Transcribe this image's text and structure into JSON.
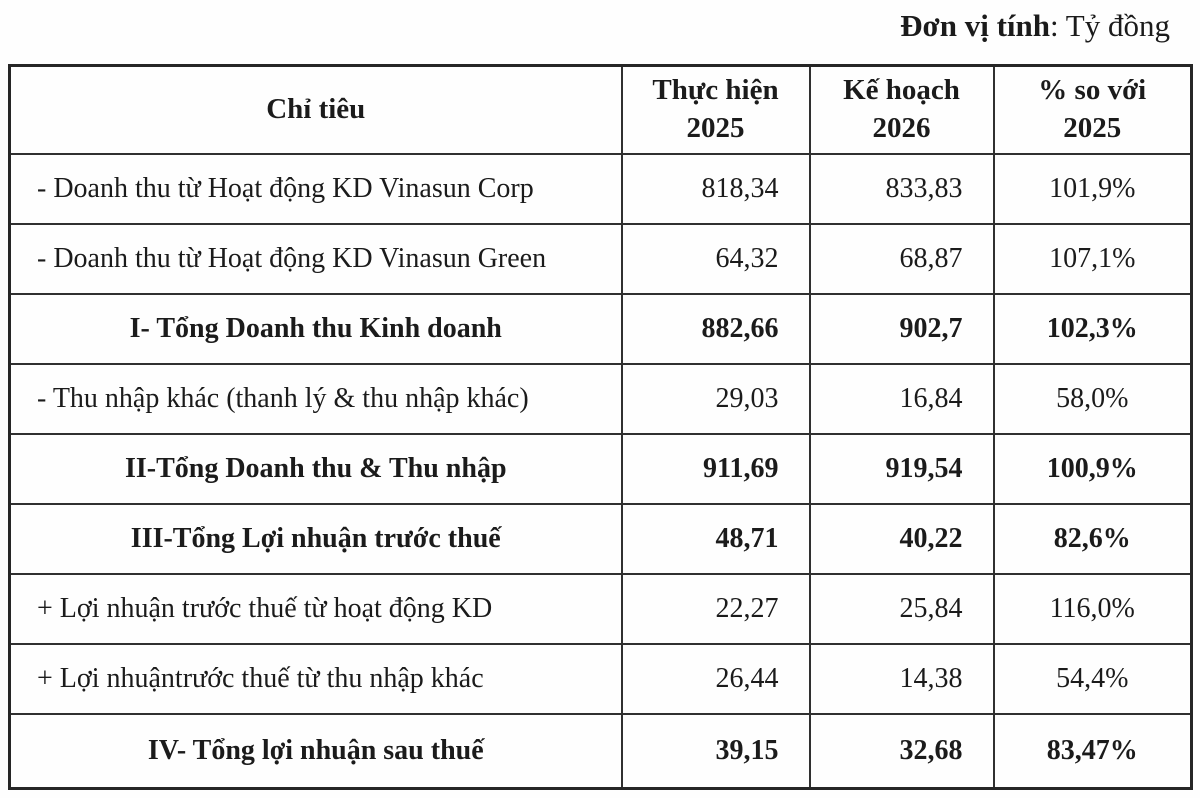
{
  "unit_label": {
    "bold": "Đơn vị tính",
    "rest": ": Tỷ đồng"
  },
  "table": {
    "columns": [
      {
        "label": "Chỉ tiêu",
        "sub": ""
      },
      {
        "label": "Thực hiện",
        "sub": "2025"
      },
      {
        "label": "Kế hoạch",
        "sub": "2026"
      },
      {
        "label": "% so với",
        "sub": "2025"
      }
    ],
    "rows": [
      {
        "label": "- Doanh thu từ Hoạt động KD Vinasun Corp",
        "v2025": "818,34",
        "v2026": "833,83",
        "pct": "101,9%",
        "bold": false
      },
      {
        "label": "- Doanh thu từ Hoạt động KD Vinasun Green",
        "v2025": "64,32",
        "v2026": "68,87",
        "pct": "107,1%",
        "bold": false
      },
      {
        "label": "I-  Tổng Doanh thu Kinh doanh",
        "v2025": "882,66",
        "v2026": "902,7",
        "pct": "102,3%",
        "bold": true
      },
      {
        "label": "- Thu nhập khác (thanh lý & thu nhập khác)",
        "v2025": "29,03",
        "v2026": "16,84",
        "pct": "58,0%",
        "bold": false
      },
      {
        "label": "II-Tổng Doanh thu & Thu nhập",
        "v2025": "911,69",
        "v2026": "919,54",
        "pct": "100,9%",
        "bold": true
      },
      {
        "label": "III-Tổng Lợi nhuận trước thuế",
        "v2025": "48,71",
        "v2026": "40,22",
        "pct": "82,6%",
        "bold": true
      },
      {
        "label": "+ Lợi nhuận trước thuế từ hoạt động KD",
        "v2025": "22,27",
        "v2026": "25,84",
        "pct": "116,0%",
        "bold": false
      },
      {
        "label": "+ Lợi nhuậntrước thuế từ thu nhập khác",
        "v2025": "26,44",
        "v2026": "14,38",
        "pct": "54,4%",
        "bold": false
      },
      {
        "label": "IV- Tổng lợi nhuận sau thuế",
        "v2025": "39,15",
        "v2026": "32,68",
        "pct": "83,47%",
        "bold": true
      }
    ]
  }
}
